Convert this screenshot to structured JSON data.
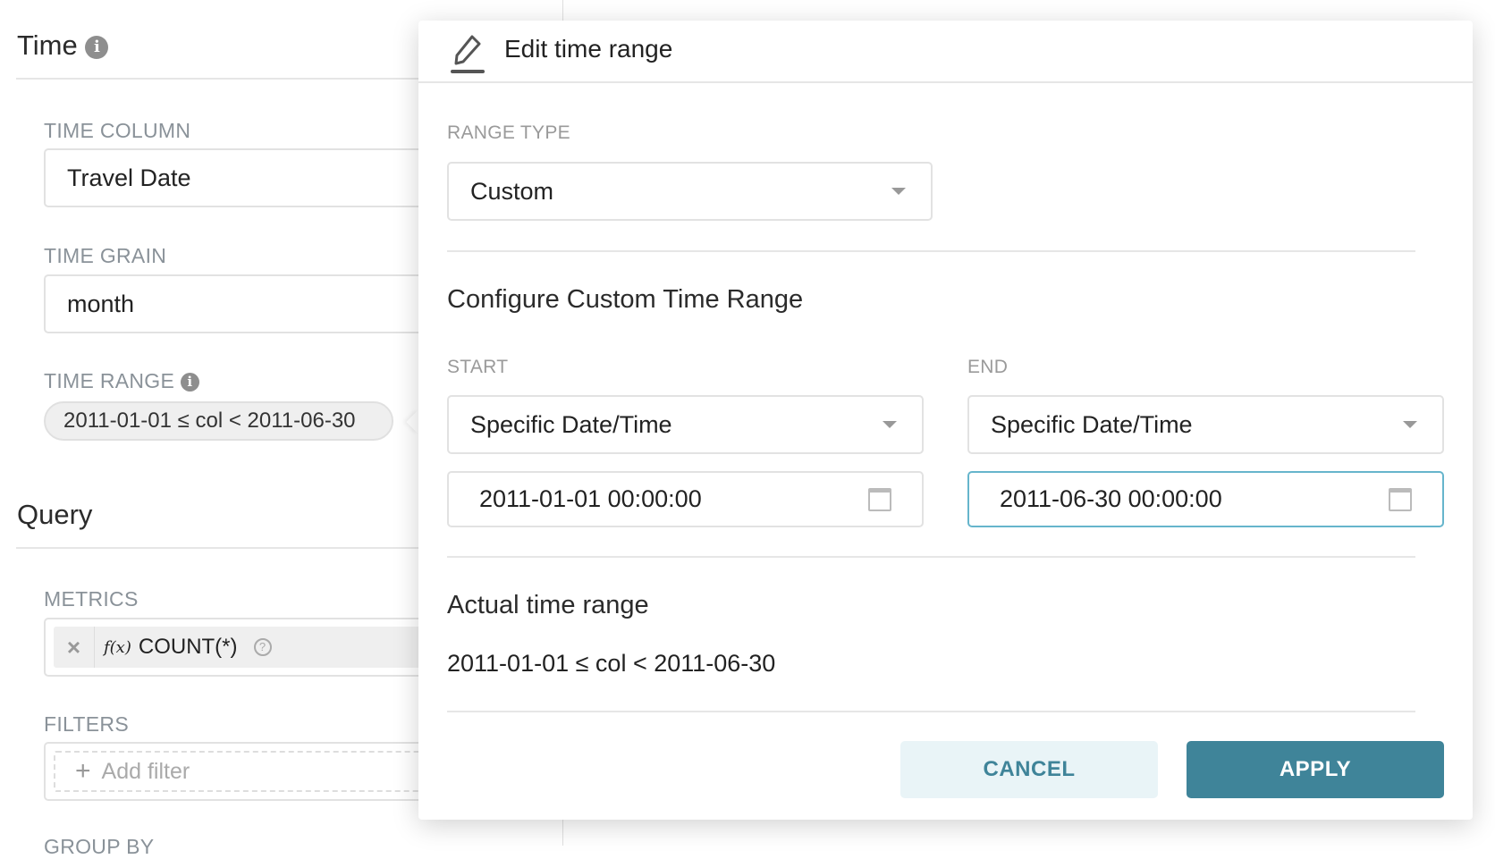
{
  "left": {
    "time_heading": "Time",
    "time_column": {
      "label": "TIME COLUMN",
      "value": "Travel Date"
    },
    "time_grain": {
      "label": "TIME GRAIN",
      "value": "month"
    },
    "time_range": {
      "label": "TIME RANGE",
      "value": "2011-01-01 ≤ col < 2011-06-30"
    },
    "query_heading": "Query",
    "metrics": {
      "label": "METRICS",
      "fx": "f(x)",
      "value": "COUNT(*)"
    },
    "filters": {
      "label": "FILTERS",
      "placeholder": "Add filter"
    },
    "group_by": {
      "label": "GROUP BY"
    }
  },
  "popover": {
    "title": "Edit time range",
    "range_type_label": "RANGE TYPE",
    "range_type_value": "Custom",
    "configure_heading": "Configure Custom Time Range",
    "start": {
      "label": "START",
      "mode": "Specific Date/Time",
      "value": "2011-01-01 00:00:00"
    },
    "end": {
      "label": "END",
      "mode": "Specific Date/Time",
      "value": "2011-06-30 00:00:00"
    },
    "actual_heading": "Actual time range",
    "actual_value": "2011-01-01 ≤ col < 2011-06-30",
    "cancel_label": "CANCEL",
    "apply_label": "APPLY"
  },
  "colors": {
    "primary": "#3f8499",
    "cancel_bg": "#e9f4f7",
    "focus_border": "#66b5cc"
  }
}
